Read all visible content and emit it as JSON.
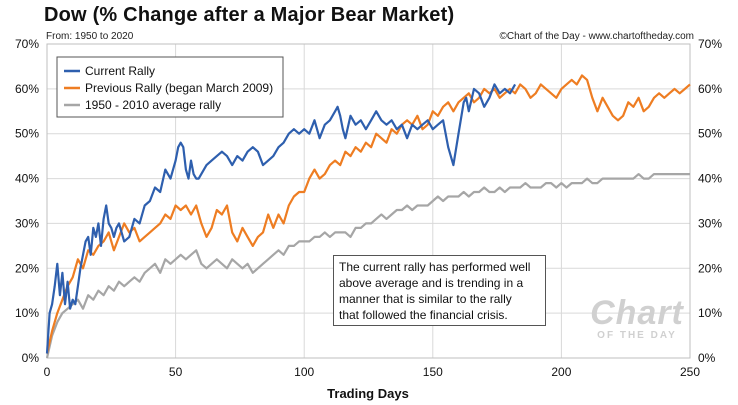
{
  "header": {
    "title": "Dow (% Change after a Major Bear Market)",
    "subtitle": "From: 1950 to 2020",
    "credit": "©Chart of the Day - www.chartoftheday.com"
  },
  "annotation": {
    "lines": [
      "The current rally has performed well",
      "above average and is trending in a",
      "manner that is similar to the rally",
      "that followed the financial crisis."
    ]
  },
  "watermark": {
    "big": "Chart",
    "small": "OF THE DAY"
  },
  "chart_data": {
    "type": "line",
    "title": "Dow (% Change after a Major Bear Market)",
    "xlabel": "Trading Days",
    "ylabel": "",
    "xlim": [
      0,
      250
    ],
    "ylim": [
      0,
      70
    ],
    "x_ticks": [
      "0",
      "50",
      "100",
      "150",
      "200",
      "250"
    ],
    "y_ticks": [
      "0%",
      "10%",
      "20%",
      "30%",
      "40%",
      "50%",
      "60%",
      "70%"
    ],
    "grid": true,
    "legend": "top-left",
    "series": [
      {
        "name": "Current Rally",
        "color": "#2e5fae",
        "x": [
          0,
          1,
          2,
          3,
          4,
          5,
          6,
          7,
          8,
          9,
          10,
          11,
          12,
          13,
          14,
          15,
          16,
          17,
          18,
          19,
          20,
          21,
          22,
          23,
          24,
          25,
          26,
          27,
          28,
          29,
          30,
          32,
          34,
          36,
          38,
          40,
          42,
          44,
          46,
          48,
          50,
          51,
          52,
          53,
          54,
          55,
          56,
          57,
          58,
          59,
          60,
          62,
          64,
          66,
          68,
          70,
          72,
          74,
          76,
          78,
          80,
          82,
          84,
          86,
          88,
          90,
          92,
          94,
          96,
          98,
          100,
          102,
          104,
          106,
          108,
          110,
          112,
          113,
          114,
          115,
          116,
          118,
          120,
          122,
          124,
          126,
          128,
          130,
          132,
          134,
          136,
          138,
          140,
          142,
          144,
          146,
          148,
          150,
          152,
          154,
          156,
          158,
          160,
          162,
          163,
          164,
          166,
          168,
          170,
          172,
          174,
          176,
          178,
          180,
          182
        ],
        "y": [
          1,
          10,
          12,
          16,
          21,
          14,
          19,
          12,
          17,
          11,
          13,
          12,
          16,
          20,
          23,
          26,
          27,
          23,
          29,
          27,
          30,
          25,
          31,
          34,
          30,
          29,
          27,
          29,
          30,
          28,
          26,
          27,
          31,
          30,
          34,
          35,
          38,
          37,
          42,
          40,
          44,
          47,
          48,
          47,
          42,
          40,
          44,
          41,
          40,
          40,
          41,
          43,
          44,
          45,
          46,
          45,
          43,
          45,
          44,
          46,
          47,
          46,
          43,
          44,
          45,
          47,
          48,
          50,
          51,
          50,
          51,
          50,
          53,
          49,
          52,
          53,
          55,
          56,
          54,
          51,
          49,
          54,
          52,
          53,
          51,
          53,
          55,
          53,
          52,
          53,
          51,
          52,
          49,
          52,
          51,
          52,
          53,
          51,
          52,
          53,
          47,
          43,
          50,
          57,
          58,
          55,
          60,
          59,
          56,
          58,
          61,
          59,
          60,
          59,
          61
        ]
      },
      {
        "name": "Previous Rally (began March 2009)",
        "color": "#ee7d22",
        "x": [
          0,
          2,
          4,
          6,
          8,
          10,
          12,
          14,
          16,
          18,
          20,
          22,
          24,
          26,
          28,
          30,
          32,
          34,
          36,
          38,
          40,
          42,
          44,
          46,
          48,
          50,
          52,
          54,
          56,
          58,
          60,
          62,
          64,
          66,
          68,
          70,
          72,
          74,
          76,
          78,
          80,
          82,
          84,
          86,
          88,
          90,
          92,
          94,
          96,
          98,
          100,
          102,
          104,
          106,
          108,
          110,
          112,
          114,
          116,
          118,
          120,
          122,
          124,
          126,
          128,
          130,
          132,
          134,
          136,
          138,
          140,
          142,
          144,
          146,
          148,
          150,
          152,
          154,
          156,
          158,
          160,
          162,
          164,
          166,
          168,
          170,
          172,
          174,
          176,
          178,
          180,
          182,
          184,
          186,
          188,
          190,
          192,
          194,
          196,
          198,
          200,
          202,
          204,
          206,
          208,
          210,
          212,
          214,
          216,
          218,
          220,
          222,
          224,
          226,
          228,
          230,
          232,
          234,
          236,
          238,
          240,
          242,
          244,
          246,
          248,
          250
        ],
        "y": [
          1,
          6,
          10,
          13,
          16,
          18,
          22,
          20,
          24,
          23,
          25,
          26,
          28,
          24,
          27,
          30,
          28,
          29,
          26,
          27,
          28,
          29,
          30,
          32,
          31,
          34,
          33,
          34,
          32,
          34,
          30,
          27,
          29,
          33,
          32,
          34,
          28,
          26,
          29,
          27,
          25,
          27,
          28,
          32,
          29,
          32,
          30,
          34,
          36,
          37,
          37,
          40,
          42,
          40,
          41,
          43,
          44,
          43,
          46,
          45,
          47,
          46,
          48,
          47,
          50,
          49,
          48,
          51,
          50,
          52,
          53,
          52,
          54,
          51,
          52,
          55,
          54,
          56,
          57,
          55,
          57,
          58,
          59,
          57,
          58,
          60,
          59,
          60,
          58,
          59,
          60,
          59,
          61,
          60,
          58,
          59,
          61,
          60,
          59,
          58,
          60,
          61,
          62,
          61,
          63,
          62,
          58,
          55,
          58,
          56,
          54,
          53,
          54,
          57,
          56,
          58,
          55,
          56,
          58,
          59,
          58,
          59,
          60,
          59,
          60,
          61
        ]
      },
      {
        "name": "1950 - 2010 average rally",
        "color": "#a6a6a6",
        "x": [
          0,
          2,
          4,
          6,
          8,
          10,
          12,
          14,
          16,
          18,
          20,
          22,
          24,
          26,
          28,
          30,
          32,
          34,
          36,
          38,
          40,
          42,
          44,
          46,
          48,
          50,
          52,
          54,
          56,
          58,
          60,
          62,
          64,
          66,
          68,
          70,
          72,
          74,
          76,
          78,
          80,
          82,
          84,
          86,
          88,
          90,
          92,
          94,
          96,
          98,
          100,
          102,
          104,
          106,
          108,
          110,
          112,
          114,
          116,
          118,
          120,
          122,
          124,
          126,
          128,
          130,
          132,
          134,
          136,
          138,
          140,
          142,
          144,
          146,
          148,
          150,
          152,
          154,
          156,
          158,
          160,
          162,
          164,
          166,
          168,
          170,
          172,
          174,
          176,
          178,
          180,
          182,
          184,
          186,
          188,
          190,
          192,
          194,
          196,
          198,
          200,
          202,
          204,
          206,
          208,
          210,
          212,
          214,
          216,
          218,
          220,
          222,
          224,
          226,
          228,
          230,
          232,
          234,
          236,
          238,
          240,
          242,
          244,
          246,
          248,
          250
        ],
        "y": [
          0,
          5,
          8,
          10,
          11,
          12,
          13,
          11,
          14,
          13,
          15,
          14,
          16,
          15,
          17,
          16,
          17,
          18,
          17,
          19,
          20,
          21,
          19,
          22,
          21,
          22,
          23,
          22,
          23,
          24,
          21,
          20,
          21,
          22,
          21,
          20,
          22,
          21,
          20,
          21,
          19,
          20,
          21,
          22,
          23,
          24,
          23,
          25,
          25,
          26,
          26,
          26,
          27,
          27,
          28,
          27,
          28,
          28,
          28,
          27,
          29,
          29,
          30,
          30,
          31,
          32,
          31,
          32,
          33,
          33,
          34,
          33,
          34,
          34,
          34,
          35,
          36,
          35,
          36,
          36,
          36,
          37,
          36,
          37,
          37,
          38,
          37,
          37,
          38,
          37,
          38,
          38,
          38,
          39,
          38,
          38,
          38,
          39,
          39,
          38,
          39,
          38,
          39,
          39,
          39,
          40,
          39,
          39,
          40,
          40,
          40,
          40,
          40,
          40,
          40,
          41,
          40,
          40,
          41,
          41,
          41,
          41,
          41,
          41,
          41,
          41
        ]
      }
    ]
  }
}
